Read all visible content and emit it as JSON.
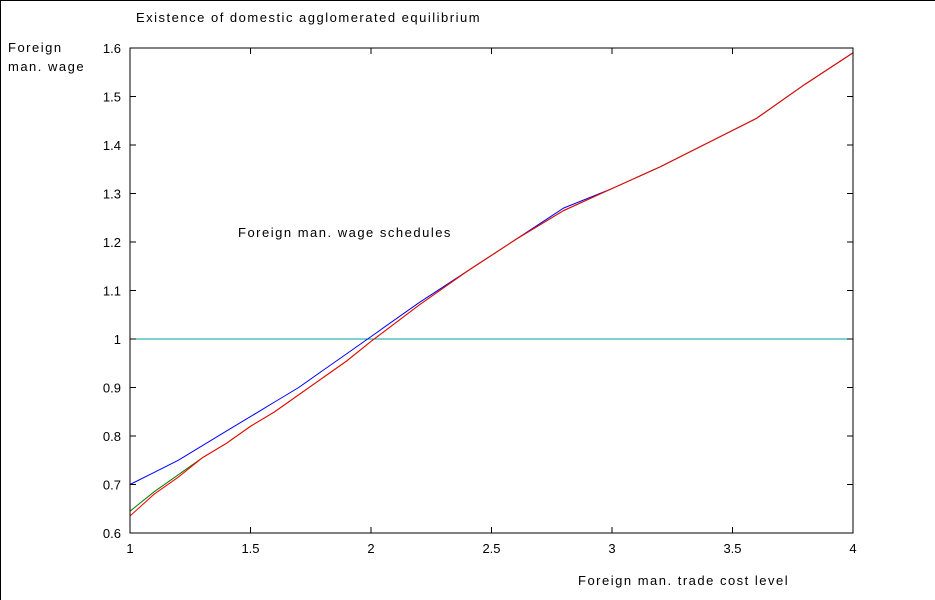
{
  "chart_data": {
    "type": "line",
    "title": "Existence of domestic agglomerated equilibrium",
    "ylabel_line1": "Foreign",
    "ylabel_line2": "man. wage",
    "xlabel": "Foreign man. trade cost level",
    "annotation": "Foreign man. wage schedules",
    "xlim": [
      1,
      4
    ],
    "ylim": [
      0.6,
      1.6
    ],
    "xticks": [
      1,
      1.5,
      2,
      2.5,
      3,
      3.5,
      4
    ],
    "xtick_labels": [
      "1",
      "1.5",
      "2",
      "2.5",
      "3",
      "3.5",
      "4"
    ],
    "yticks": [
      0.6,
      0.7,
      0.8,
      0.9,
      1.0,
      1.1,
      1.2,
      1.3,
      1.4,
      1.5,
      1.6
    ],
    "ytick_labels": [
      "0.6",
      "0.7",
      "0.8",
      "0.9",
      "1",
      "1.1",
      "1.2",
      "1.3",
      "1.4",
      "1.5",
      "1.6"
    ],
    "grid": false,
    "legend": false,
    "series": [
      {
        "color": "#0000ff",
        "x": [
          1.0,
          1.1,
          1.2,
          1.3,
          1.4,
          1.5,
          1.6,
          1.7,
          1.8,
          1.9,
          2.0,
          2.2,
          2.4,
          2.6,
          2.8,
          3.0,
          3.2,
          3.4,
          3.6,
          3.8,
          4.0
        ],
        "y": [
          0.7,
          0.725,
          0.75,
          0.78,
          0.81,
          0.84,
          0.87,
          0.9,
          0.935,
          0.97,
          1.005,
          1.075,
          1.14,
          1.205,
          1.27,
          1.31,
          1.355,
          1.405,
          1.455,
          1.525,
          1.59
        ]
      },
      {
        "color": "#008000",
        "x": [
          1.0,
          1.1,
          1.2,
          1.3,
          1.4,
          1.5,
          1.6,
          1.7,
          1.8,
          1.9,
          2.0,
          2.2,
          2.4,
          2.6,
          2.8,
          3.0,
          3.2,
          3.4,
          3.6,
          3.8,
          4.0
        ],
        "y": [
          0.645,
          0.685,
          0.72,
          0.755,
          0.785,
          0.82,
          0.85,
          0.885,
          0.92,
          0.955,
          0.995,
          1.07,
          1.14,
          1.205,
          1.265,
          1.31,
          1.355,
          1.405,
          1.455,
          1.525,
          1.59
        ]
      },
      {
        "color": "#ff0000",
        "x": [
          1.0,
          1.1,
          1.2,
          1.3,
          1.4,
          1.5,
          1.6,
          1.7,
          1.8,
          1.9,
          2.0,
          2.2,
          2.4,
          2.6,
          2.8,
          3.0,
          3.2,
          3.4,
          3.6,
          3.8,
          4.0
        ],
        "y": [
          0.635,
          0.68,
          0.715,
          0.755,
          0.785,
          0.82,
          0.85,
          0.885,
          0.92,
          0.955,
          0.995,
          1.07,
          1.14,
          1.205,
          1.265,
          1.31,
          1.355,
          1.405,
          1.455,
          1.525,
          1.59
        ]
      },
      {
        "color": "#00a0a0",
        "x": [
          1.0,
          4.0
        ],
        "y": [
          1.0,
          1.0
        ]
      }
    ]
  }
}
